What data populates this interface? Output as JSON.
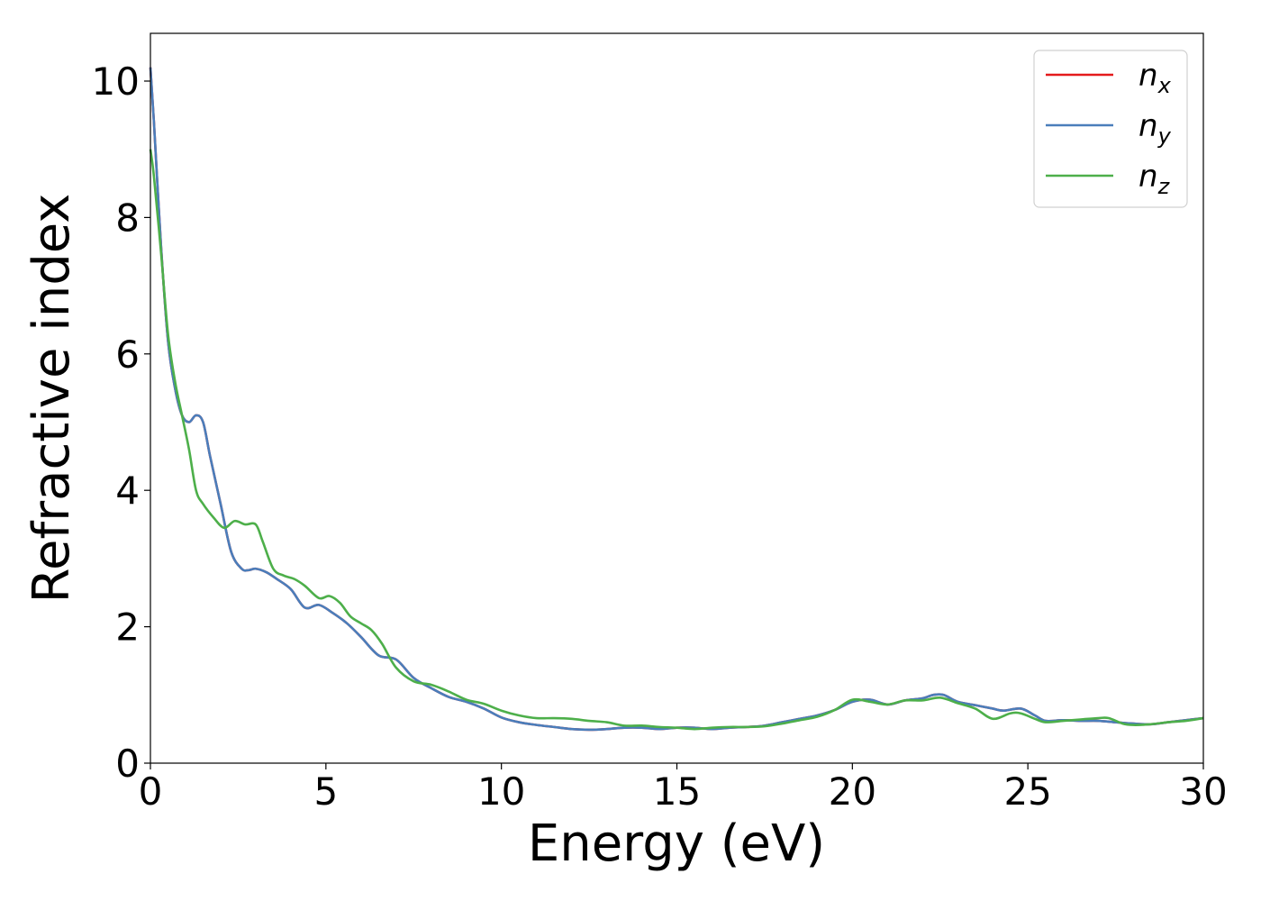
{
  "chart_data": {
    "type": "line",
    "title": "",
    "xlabel": "Energy (eV)",
    "ylabel": "Refractive index",
    "xlim": [
      0,
      30
    ],
    "ylim": [
      0,
      10.7
    ],
    "xticks": [
      0,
      5,
      10,
      15,
      20,
      25,
      30
    ],
    "yticks": [
      0,
      2,
      4,
      6,
      8,
      10
    ],
    "grid": false,
    "legend_position": "top-right",
    "series": [
      {
        "name": "n_x",
        "label_base": "n",
        "label_sub": "x",
        "color": "#e41a1c",
        "x": [
          0,
          0.1,
          0.3,
          0.5,
          0.7,
          0.9,
          1.1,
          1.3,
          1.5,
          1.7,
          2.0,
          2.3,
          2.6,
          2.8,
          3.0,
          3.3,
          3.6,
          4.0,
          4.4,
          4.8,
          5.2,
          5.6,
          6.0,
          6.5,
          7.0,
          7.5,
          8.0,
          8.5,
          9.0,
          9.5,
          10.0,
          10.5,
          11.0,
          11.5,
          12.0,
          12.5,
          13.0,
          13.5,
          14.0,
          14.5,
          15.0,
          15.5,
          16.0,
          16.5,
          17.0,
          17.5,
          18.0,
          18.5,
          19.0,
          19.5,
          20.0,
          20.5,
          21.0,
          21.5,
          22.0,
          22.3,
          22.6,
          23.0,
          23.5,
          24.0,
          24.3,
          24.8,
          25.2,
          25.5,
          26.0,
          26.5,
          27.0,
          27.5,
          28.0,
          28.5,
          29.0,
          29.5,
          30.0
        ],
        "values": [
          10.2,
          9.4,
          7.6,
          6.2,
          5.5,
          5.1,
          5.0,
          5.1,
          5.0,
          4.5,
          3.8,
          3.1,
          2.85,
          2.83,
          2.85,
          2.8,
          2.7,
          2.55,
          2.28,
          2.32,
          2.2,
          2.05,
          1.85,
          1.58,
          1.52,
          1.25,
          1.1,
          0.97,
          0.9,
          0.8,
          0.67,
          0.6,
          0.56,
          0.53,
          0.5,
          0.49,
          0.5,
          0.52,
          0.52,
          0.5,
          0.52,
          0.52,
          0.5,
          0.52,
          0.53,
          0.55,
          0.6,
          0.65,
          0.7,
          0.78,
          0.9,
          0.93,
          0.86,
          0.92,
          0.95,
          1.0,
          1.0,
          0.9,
          0.85,
          0.8,
          0.77,
          0.8,
          0.7,
          0.62,
          0.63,
          0.62,
          0.62,
          0.6,
          0.58,
          0.57,
          0.6,
          0.63,
          0.66
        ]
      },
      {
        "name": "n_y",
        "label_base": "n",
        "label_sub": "y",
        "color": "#4a7ebb",
        "x": [
          0,
          0.1,
          0.3,
          0.5,
          0.7,
          0.9,
          1.1,
          1.3,
          1.5,
          1.7,
          2.0,
          2.3,
          2.6,
          2.8,
          3.0,
          3.3,
          3.6,
          4.0,
          4.4,
          4.8,
          5.2,
          5.6,
          6.0,
          6.5,
          7.0,
          7.5,
          8.0,
          8.5,
          9.0,
          9.5,
          10.0,
          10.5,
          11.0,
          11.5,
          12.0,
          12.5,
          13.0,
          13.5,
          14.0,
          14.5,
          15.0,
          15.5,
          16.0,
          16.5,
          17.0,
          17.5,
          18.0,
          18.5,
          19.0,
          19.5,
          20.0,
          20.5,
          21.0,
          21.5,
          22.0,
          22.3,
          22.6,
          23.0,
          23.5,
          24.0,
          24.3,
          24.8,
          25.2,
          25.5,
          26.0,
          26.5,
          27.0,
          27.5,
          28.0,
          28.5,
          29.0,
          29.5,
          30.0
        ],
        "values": [
          10.2,
          9.4,
          7.6,
          6.2,
          5.5,
          5.1,
          5.0,
          5.1,
          5.0,
          4.5,
          3.8,
          3.1,
          2.85,
          2.83,
          2.85,
          2.8,
          2.7,
          2.55,
          2.28,
          2.32,
          2.2,
          2.05,
          1.85,
          1.58,
          1.52,
          1.25,
          1.1,
          0.97,
          0.9,
          0.8,
          0.67,
          0.6,
          0.56,
          0.53,
          0.5,
          0.49,
          0.5,
          0.52,
          0.52,
          0.5,
          0.52,
          0.52,
          0.5,
          0.52,
          0.53,
          0.55,
          0.6,
          0.65,
          0.7,
          0.78,
          0.9,
          0.93,
          0.86,
          0.92,
          0.95,
          1.0,
          1.0,
          0.9,
          0.85,
          0.8,
          0.77,
          0.8,
          0.7,
          0.62,
          0.63,
          0.62,
          0.62,
          0.6,
          0.58,
          0.57,
          0.6,
          0.63,
          0.66
        ]
      },
      {
        "name": "n_z",
        "label_base": "n",
        "label_sub": "z",
        "color": "#4daf4a",
        "x": [
          0,
          0.1,
          0.3,
          0.5,
          0.7,
          0.9,
          1.1,
          1.3,
          1.5,
          1.8,
          2.1,
          2.4,
          2.7,
          3.0,
          3.2,
          3.5,
          3.8,
          4.1,
          4.4,
          4.8,
          5.1,
          5.4,
          5.7,
          6.0,
          6.3,
          6.6,
          7.0,
          7.5,
          8.0,
          8.5,
          9.0,
          9.5,
          10.0,
          10.5,
          11.0,
          11.5,
          12.0,
          12.5,
          13.0,
          13.5,
          14.0,
          14.5,
          15.0,
          15.5,
          16.0,
          16.5,
          17.0,
          17.5,
          18.0,
          18.5,
          19.0,
          19.5,
          20.0,
          20.5,
          21.0,
          21.5,
          22.0,
          22.5,
          23.0,
          23.5,
          24.0,
          24.5,
          24.8,
          25.2,
          25.5,
          26.0,
          26.5,
          27.0,
          27.3,
          27.7,
          28.0,
          28.5,
          29.0,
          29.5,
          30.0
        ],
        "values": [
          9.0,
          8.6,
          7.5,
          6.3,
          5.6,
          5.1,
          4.6,
          4.0,
          3.8,
          3.6,
          3.45,
          3.55,
          3.5,
          3.5,
          3.25,
          2.85,
          2.75,
          2.7,
          2.6,
          2.42,
          2.45,
          2.35,
          2.15,
          2.05,
          1.95,
          1.75,
          1.4,
          1.2,
          1.15,
          1.05,
          0.93,
          0.87,
          0.77,
          0.7,
          0.66,
          0.66,
          0.65,
          0.62,
          0.6,
          0.55,
          0.55,
          0.53,
          0.52,
          0.5,
          0.52,
          0.53,
          0.53,
          0.54,
          0.58,
          0.63,
          0.68,
          0.78,
          0.93,
          0.9,
          0.86,
          0.92,
          0.92,
          0.96,
          0.88,
          0.8,
          0.65,
          0.73,
          0.73,
          0.65,
          0.6,
          0.62,
          0.64,
          0.66,
          0.66,
          0.58,
          0.56,
          0.57,
          0.6,
          0.62,
          0.66
        ]
      }
    ]
  }
}
